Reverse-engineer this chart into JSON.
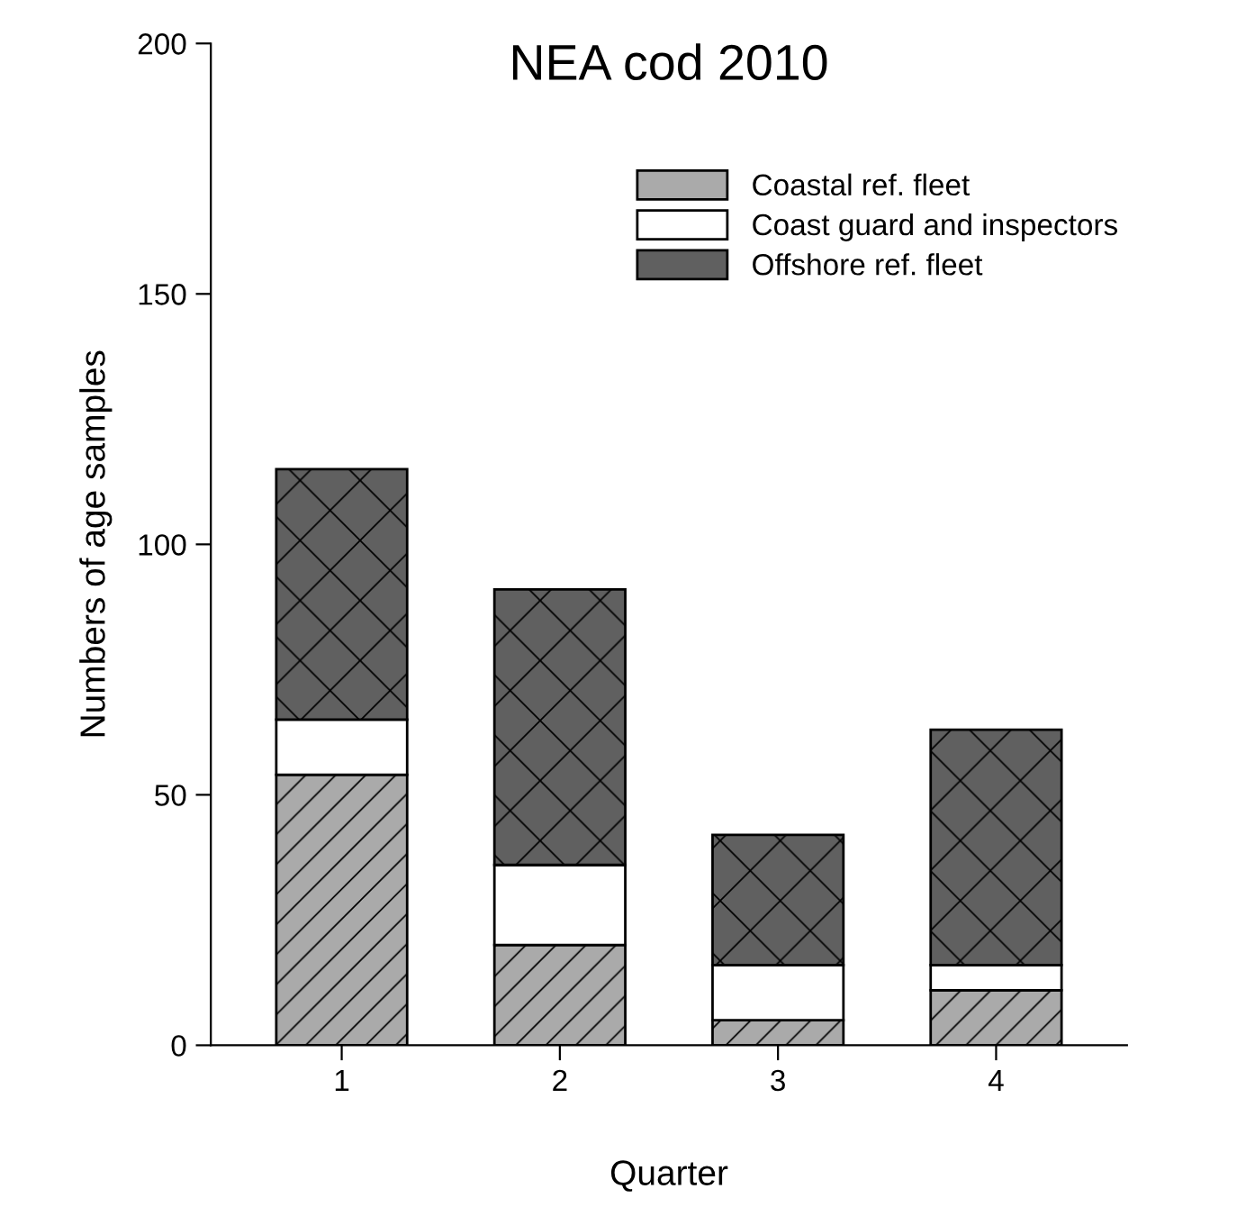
{
  "chart_data": {
    "type": "bar",
    "title": "NEA cod 2010",
    "xlabel": "Quarter",
    "ylabel": "Numbers of age samples",
    "categories": [
      "1",
      "2",
      "3",
      "4"
    ],
    "stacked": true,
    "series": [
      {
        "name": "Coastal ref. fleet",
        "color": "#aaaaaa",
        "values": [
          54,
          20,
          5,
          11
        ]
      },
      {
        "name": "Coast guard and inspectors",
        "color": "#ffffff",
        "values": [
          11,
          16,
          11,
          5
        ]
      },
      {
        "name": "Offshore ref. fleet",
        "color": "#606060",
        "values": [
          50,
          55,
          26,
          47
        ]
      }
    ],
    "ylim": [
      0,
      200
    ],
    "yticks": [
      0,
      50,
      100,
      150,
      200
    ],
    "grid": false,
    "legend": "top right"
  }
}
